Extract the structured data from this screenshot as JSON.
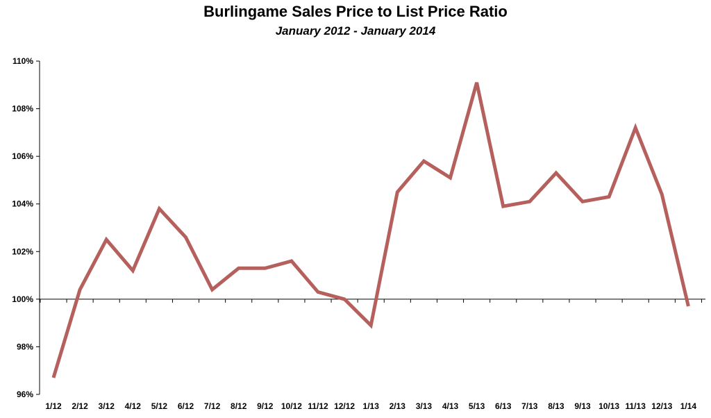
{
  "chart_data": {
    "type": "line",
    "title": "Burlingame Sales Price to List Price Ratio",
    "subtitle": "January 2012 - January 2014",
    "xlabel": "",
    "ylabel": "",
    "categories": [
      "1/12",
      "2/12",
      "3/12",
      "4/12",
      "5/12",
      "6/12",
      "7/12",
      "8/12",
      "9/12",
      "10/12",
      "11/12",
      "12/12",
      "1/13",
      "2/13",
      "3/13",
      "4/13",
      "5/13",
      "6/13",
      "7/13",
      "8/13",
      "9/13",
      "10/13",
      "11/13",
      "12/13",
      "1/14"
    ],
    "series": [
      {
        "values": [
          96.7,
          100.4,
          102.5,
          101.2,
          103.8,
          102.6,
          100.4,
          101.3,
          101.3,
          101.6,
          100.3,
          100.0,
          98.9,
          104.5,
          105.8,
          105.1,
          109.1,
          103.9,
          104.1,
          105.3,
          104.1,
          104.3,
          107.2,
          104.4,
          99.7
        ]
      }
    ],
    "ylim": [
      96,
      110
    ],
    "yticks": [
      96,
      98,
      100,
      102,
      104,
      106,
      108,
      110
    ],
    "ytick_labels": [
      "96%",
      "98%",
      "100%",
      "102%",
      "104%",
      "106%",
      "108%",
      "110%"
    ],
    "x_axis_crosses_at": 100,
    "grid": false,
    "legend": "none",
    "line_color": "#b5605c"
  }
}
